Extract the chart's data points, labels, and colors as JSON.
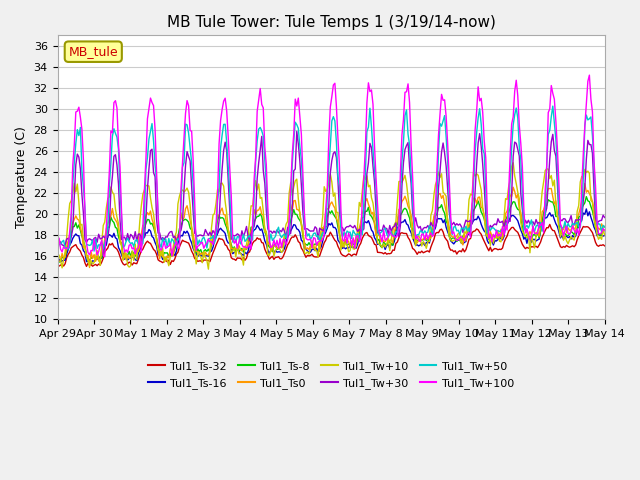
{
  "title": "MB Tule Tower: Tule Temps 1 (3/19/14-now)",
  "ylabel": "Temperature (C)",
  "ylim": [
    10,
    37
  ],
  "yticks": [
    10,
    12,
    14,
    16,
    18,
    20,
    22,
    24,
    26,
    28,
    30,
    32,
    34,
    36
  ],
  "x_labels": [
    "Apr 29",
    "Apr 30",
    "May 1",
    "May 2",
    "May 3",
    "May 4",
    "May 5",
    "May 6",
    "May 7",
    "May 8",
    "May 9",
    "May 10",
    "May 11",
    "May 12",
    "May 13",
    "May 14"
  ],
  "legend_label": "MB_tule",
  "series_names": [
    "Tul1_Ts-32",
    "Tul1_Ts-16",
    "Tul1_Ts-8",
    "Tul1_Ts0",
    "Tul1_Tw+10",
    "Tul1_Tw+30",
    "Tul1_Tw+50",
    "Tul1_Tw+100"
  ],
  "series_colors": [
    "#cc0000",
    "#0000cc",
    "#00cc00",
    "#ff9900",
    "#cccc00",
    "#9900cc",
    "#00cccc",
    "#ff00ff"
  ],
  "background_color": "#f0f0f0",
  "plot_bg_color": "#ffffff",
  "grid_color": "#cccccc"
}
